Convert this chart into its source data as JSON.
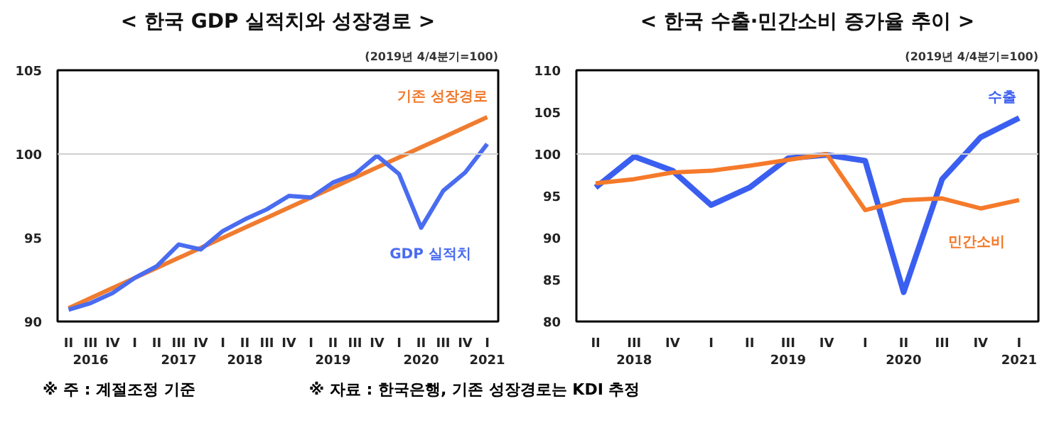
{
  "chart_data": [
    {
      "type": "line",
      "title": "< 한국 GDP 실적치와 성장경로 >",
      "subtitle": "(2019년 4/4분기=100)",
      "categories": [
        "II",
        "III\n2016",
        "IV",
        "I",
        "II",
        "III\n2017",
        "IV",
        "I",
        "II\n2018",
        "III",
        "IV",
        "I",
        "II\n2019",
        "III",
        "IV",
        "I",
        "II\n2020",
        "III",
        "IV",
        "I\n2021"
      ],
      "series": [
        {
          "name": "기존 성장경로",
          "color": "#f07c30",
          "values": [
            90.8,
            91.4,
            92.0,
            92.6,
            93.2,
            93.8,
            94.4,
            95.0,
            95.6,
            96.2,
            96.8,
            97.4,
            98.0,
            98.6,
            99.2,
            99.8,
            100.4,
            101.0,
            101.6,
            102.2
          ]
        },
        {
          "name": "GDP 실적치",
          "color": "#4a6cf0",
          "values": [
            90.7,
            91.1,
            91.7,
            92.6,
            93.3,
            94.6,
            94.3,
            95.4,
            96.1,
            96.7,
            97.5,
            97.4,
            98.3,
            98.8,
            99.9,
            98.8,
            95.6,
            97.8,
            98.9,
            100.6
          ]
        }
      ],
      "ylim": [
        90,
        105
      ],
      "yticks": [
        90,
        95,
        100,
        105
      ],
      "ref_lines": [
        {
          "axis": "y",
          "value": 100,
          "label": null,
          "color": "#d0d0d0"
        }
      ],
      "grid": false,
      "annotations": [
        "※ 주 : 계절조정 기준",
        "※ 자료 : 한국은행, 기존 성장경로는 KDI 추정"
      ]
    },
    {
      "type": "line",
      "title": "< 한국 수출·민간소비 증가율 추이 >",
      "subtitle": "(2019년 4/4분기=100)",
      "categories": [
        "II",
        "III\n2018",
        "IV",
        "I",
        "II",
        "III\n2019",
        "IV",
        "I",
        "II\n2020",
        "III",
        "IV",
        "I\n2021"
      ],
      "series": [
        {
          "name": "수출",
          "color": "#3a5ff0",
          "values": [
            96.0,
            99.7,
            98.0,
            93.9,
            96.0,
            99.5,
            99.9,
            99.2,
            83.5,
            97.0,
            102.0,
            104.3
          ]
        },
        {
          "name": "민간소비",
          "color": "#f57a2a",
          "values": [
            96.5,
            97.0,
            97.8,
            98.0,
            98.6,
            99.3,
            100.0,
            93.3,
            94.5,
            94.7,
            93.5,
            94.5
          ]
        }
      ],
      "ylim": [
        80,
        110
      ],
      "yticks": [
        80,
        85,
        90,
        95,
        100,
        105,
        110
      ],
      "ref_lines": [
        {
          "axis": "y",
          "value": 100,
          "label": null,
          "color": "#d0d0d0"
        }
      ],
      "grid": false
    }
  ]
}
